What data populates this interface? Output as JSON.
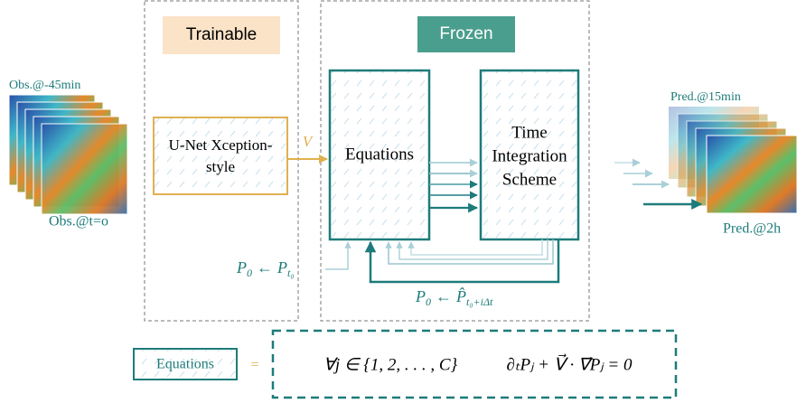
{
  "panels": {
    "trainable": "Trainable",
    "frozen": "Frozen"
  },
  "inputs": {
    "first": "Obs.@-45min",
    "last": "Obs.@t=o"
  },
  "outputs": {
    "first": "Pred.@15min",
    "last": "Pred.@2h"
  },
  "nodes": [
    {
      "label": [
        "U-Net Xception-",
        "style"
      ]
    },
    {
      "label": [
        "Equations"
      ]
    },
    {
      "label": [
        "Time",
        "Integration",
        "Scheme"
      ]
    }
  ],
  "edge_label": "V",
  "init_label": {
    "lhs": "P",
    "lhs_sub": "0",
    "arrow": "←",
    "rhs": "P",
    "rhs_sub": "t₀"
  },
  "loop_label": {
    "lhs": "P",
    "lhs_sub": "0",
    "arrow": "←",
    "rhs": "P̂",
    "rhs_sub": "t₀+iΔt"
  },
  "legend": {
    "box": "Equations",
    "equals": "=",
    "quantifier": "∀j ∈ {1, 2, . . . , C}",
    "equation": "∂ₜPⱼ + V⃗ · ∇⃗Pⱼ = 0"
  }
}
